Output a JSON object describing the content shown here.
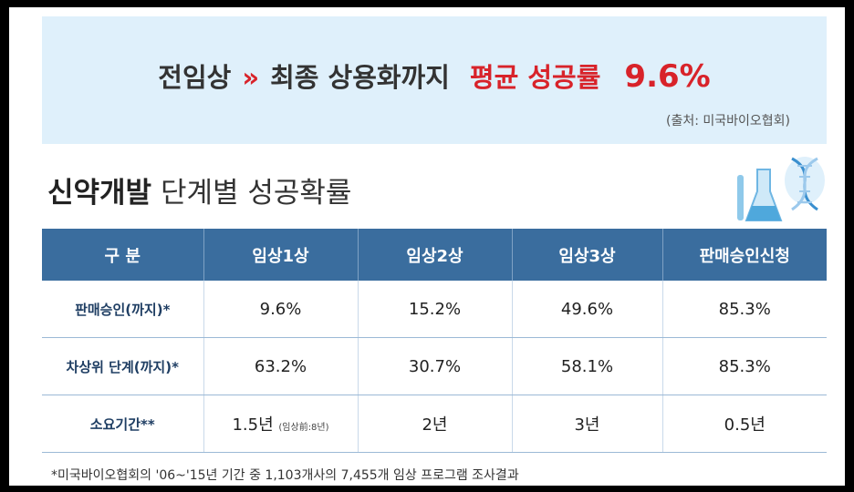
{
  "banner": {
    "prefix": "전임상",
    "arrows": "»",
    "middle": "최종 상용화까지",
    "highlight": "평균 성공률",
    "rate": "9.6%",
    "source": "(출처: 미국바이오협회)"
  },
  "section_title": {
    "strong": "신약개발",
    "rest": " 단계별 성공확률"
  },
  "table": {
    "headers": [
      "구 분",
      "임상1상",
      "임상2상",
      "임상3상",
      "판매승인신청"
    ],
    "rows": [
      {
        "label": "판매승인(까지)*",
        "cells": [
          "9.6%",
          "15.2%",
          "49.6%",
          "85.3%"
        ]
      },
      {
        "label": "차상위 단계(까지)*",
        "cells": [
          "63.2%",
          "30.7%",
          "58.1%",
          "85.3%"
        ]
      },
      {
        "label": "소요기간**",
        "cells": [
          "1.5년",
          "2년",
          "3년",
          "0.5년"
        ],
        "note": "(임상前:8년)"
      }
    ]
  },
  "footnote": "*미국바이오협회의 '06~'15년 기간 중 1,103개사의 7,455개 임상 프로그램 조사결과",
  "colors": {
    "accent_red": "#d8232a",
    "header_blue": "#3a6d9e",
    "banner_bg": "#dff0fb"
  },
  "icons": [
    "flask-icon",
    "dna-helix-icon"
  ]
}
